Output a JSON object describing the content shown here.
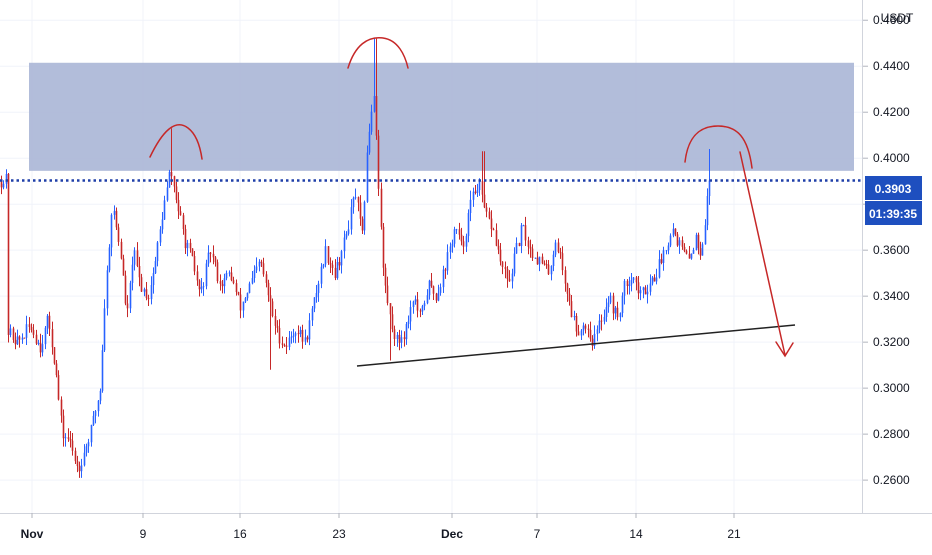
{
  "chart_data": {
    "type": "candlestick",
    "currency": "USDT",
    "x_tick_labels": [
      "Nov",
      "9",
      "16",
      "23",
      "Dec",
      "7",
      "14",
      "21"
    ],
    "y_ticks": [
      0.26,
      0.28,
      0.3,
      0.32,
      0.34,
      0.36,
      0.38,
      0.4,
      0.42,
      0.44,
      0.46
    ],
    "y_tick_labels": [
      "0.2600",
      "0.2800",
      "0.3000",
      "0.3200",
      "0.3400",
      "0.3600",
      "",
      "0.4000",
      "0.4200",
      "0.4400",
      "0.4600"
    ],
    "ylim": [
      0.2457,
      0.4688
    ],
    "last_price": 0.3903,
    "last_price_label": "0.3903",
    "countdown_label": "01:39:35",
    "resistance_zone": [
      0.3945,
      0.4415
    ],
    "up_color": "#2962ff",
    "down_color": "#c62828",
    "zone_color": "#aab6d6",
    "price_line_color": "#1f3fa8",
    "annotation_color": "#c62828",
    "trendline_color": "#222222",
    "close_path": [
      [
        0.325,
        7
      ],
      [
        0.32,
        18
      ],
      [
        0.327,
        30
      ],
      [
        0.318,
        40
      ],
      [
        0.33,
        48
      ],
      [
        0.31,
        55
      ],
      [
        0.28,
        62
      ],
      [
        0.278,
        68
      ],
      [
        0.265,
        78
      ],
      [
        0.28,
        90
      ],
      [
        0.3,
        100
      ],
      [
        0.34,
        105
      ],
      [
        0.38,
        112
      ],
      [
        0.36,
        120
      ],
      [
        0.33,
        127
      ],
      [
        0.36,
        133
      ],
      [
        0.345,
        140
      ],
      [
        0.34,
        148
      ],
      [
        0.355,
        155
      ],
      [
        0.375,
        162
      ],
      [
        0.395,
        170
      ],
      [
        0.38,
        177
      ],
      [
        0.365,
        184
      ],
      [
        0.355,
        192
      ],
      [
        0.34,
        200
      ],
      [
        0.36,
        210
      ],
      [
        0.345,
        220
      ],
      [
        0.35,
        230
      ],
      [
        0.335,
        240
      ],
      [
        0.345,
        250
      ],
      [
        0.355,
        260
      ],
      [
        0.34,
        268
      ],
      [
        0.325,
        276
      ],
      [
        0.318,
        285
      ],
      [
        0.326,
        295
      ],
      [
        0.32,
        305
      ],
      [
        0.34,
        315
      ],
      [
        0.36,
        325
      ],
      [
        0.35,
        335
      ],
      [
        0.365,
        345
      ],
      [
        0.385,
        355
      ],
      [
        0.365,
        362
      ],
      [
        0.41,
        368
      ],
      [
        0.43,
        374
      ],
      [
        0.39,
        378
      ],
      [
        0.35,
        383
      ],
      [
        0.33,
        390
      ],
      [
        0.32,
        397
      ],
      [
        0.325,
        405
      ],
      [
        0.34,
        413
      ],
      [
        0.33,
        420
      ],
      [
        0.345,
        428
      ],
      [
        0.34,
        436
      ],
      [
        0.355,
        446
      ],
      [
        0.37,
        455
      ],
      [
        0.36,
        462
      ],
      [
        0.38,
        470
      ],
      [
        0.39,
        478
      ],
      [
        0.375,
        485
      ],
      [
        0.37,
        492
      ],
      [
        0.355,
        500
      ],
      [
        0.345,
        508
      ],
      [
        0.36,
        516
      ],
      [
        0.37,
        522
      ],
      [
        0.36,
        530
      ],
      [
        0.355,
        540
      ],
      [
        0.35,
        548
      ],
      [
        0.365,
        556
      ],
      [
        0.35,
        563
      ],
      [
        0.335,
        570
      ],
      [
        0.325,
        577
      ],
      [
        0.328,
        585
      ],
      [
        0.32,
        593
      ],
      [
        0.33,
        601
      ],
      [
        0.34,
        609
      ],
      [
        0.33,
        617
      ],
      [
        0.345,
        625
      ],
      [
        0.35,
        632
      ],
      [
        0.34,
        640
      ],
      [
        0.345,
        648
      ],
      [
        0.35,
        656
      ],
      [
        0.36,
        664
      ],
      [
        0.37,
        672
      ],
      [
        0.362,
        680
      ],
      [
        0.355,
        688
      ],
      [
        0.365,
        695
      ],
      [
        0.36,
        700
      ],
      [
        0.368,
        704
      ],
      [
        0.385,
        707
      ],
      [
        0.3903,
        711
      ]
    ]
  }
}
